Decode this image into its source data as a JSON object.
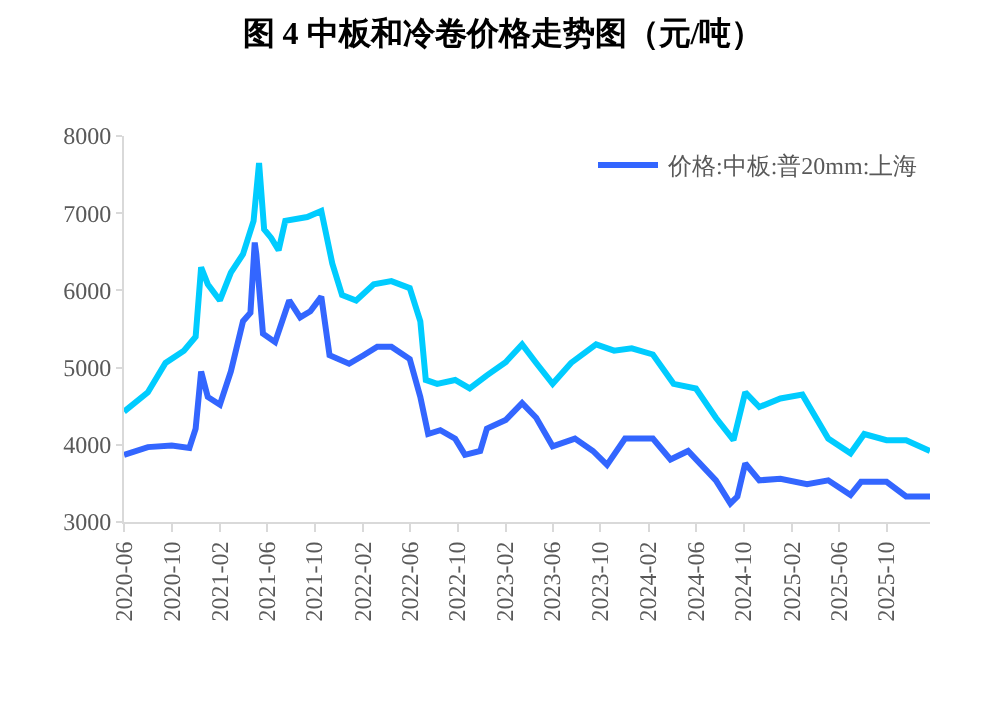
{
  "chart_data": {
    "type": "line",
    "title": "图 4 中板和冷卷价格走势图（元/吨）",
    "xlim": [
      "2020-06-01",
      "2026-01-20"
    ],
    "xticks": [
      "2020-06",
      "2020-10",
      "2021-02",
      "2021-06",
      "2021-10",
      "2022-02",
      "2022-06",
      "2022-10",
      "2023-02",
      "2023-06",
      "2023-10",
      "2024-02",
      "2024-06",
      "2024-10",
      "2025-02",
      "2025-06",
      "2025-10"
    ],
    "ylim": [
      3000,
      8000
    ],
    "yticks": [
      3000,
      4000,
      5000,
      6000,
      7000,
      8000
    ],
    "grid": false,
    "legend": "top right",
    "marker": "none",
    "line_style": "solid",
    "series": [
      {
        "name": "价格:中板:普20mm:上海",
        "color": "#3366ff",
        "x": [
          "2020-06-01",
          "2020-08-01",
          "2020-10-01",
          "2020-11-15",
          "2020-12-01",
          "2020-12-15",
          "2021-01-01",
          "2021-02-01",
          "2021-03-01",
          "2021-04-01",
          "2021-04-20",
          "2021-05-01",
          "2021-05-05",
          "2021-05-22",
          "2021-06-22",
          "2021-07-28",
          "2021-08-25",
          "2021-09-20",
          "2021-10-18",
          "2021-11-08",
          "2021-12-28",
          "2022-02-03",
          "2022-03-10",
          "2022-04-15",
          "2022-06-01",
          "2022-06-28",
          "2022-07-18",
          "2022-08-18",
          "2022-09-25",
          "2022-10-20",
          "2022-11-28",
          "2022-12-15",
          "2023-02-01",
          "2023-03-15",
          "2023-04-20",
          "2023-06-01",
          "2023-07-28",
          "2023-09-12",
          "2023-10-18",
          "2023-12-03",
          "2024-02-12",
          "2024-03-28",
          "2024-05-12",
          "2024-07-22",
          "2024-08-28",
          "2024-09-15",
          "2024-10-05",
          "2024-11-10",
          "2025-01-03",
          "2025-03-12",
          "2025-05-05",
          "2025-07-01",
          "2025-07-28",
          "2025-10-01",
          "2025-11-20",
          "2026-01-20"
        ],
        "values": [
          3870,
          3970,
          3990,
          3960,
          4210,
          4950,
          4620,
          4520,
          4950,
          5600,
          5710,
          6620,
          6470,
          5440,
          5330,
          5870,
          5650,
          5730,
          5920,
          5160,
          5050,
          5160,
          5270,
          5270,
          5110,
          4620,
          4140,
          4190,
          4080,
          3870,
          3920,
          4210,
          4320,
          4540,
          4350,
          3980,
          4080,
          3920,
          3740,
          4080,
          4080,
          3810,
          3920,
          3540,
          3240,
          3330,
          3760,
          3540,
          3560,
          3490,
          3540,
          3350,
          3520,
          3520,
          3330,
          3330
        ]
      },
      {
        "color": "#00ccff",
        "x": [
          "2020-06-01",
          "2020-08-01",
          "2020-09-15",
          "2020-11-01",
          "2020-12-01",
          "2020-12-15",
          "2021-01-01",
          "2021-02-01",
          "2021-03-01",
          "2021-04-01",
          "2021-04-28",
          "2021-05-12",
          "2021-05-25",
          "2021-06-12",
          "2021-07-01",
          "2021-07-18",
          "2021-09-12",
          "2021-10-18",
          "2021-11-15",
          "2021-12-10",
          "2022-01-15",
          "2022-03-01",
          "2022-04-15",
          "2022-06-01",
          "2022-06-28",
          "2022-07-12",
          "2022-08-10",
          "2022-09-25",
          "2022-11-01",
          "2022-12-15",
          "2023-02-01",
          "2023-03-15",
          "2023-04-20",
          "2023-06-01",
          "2023-07-18",
          "2023-09-20",
          "2023-11-05",
          "2023-12-20",
          "2024-02-12",
          "2024-04-05",
          "2024-06-01",
          "2024-07-22",
          "2024-09-05",
          "2024-10-05",
          "2024-11-10",
          "2025-01-03",
          "2025-02-28",
          "2025-05-05",
          "2025-07-01",
          "2025-08-05",
          "2025-10-01",
          "2025-11-20",
          "2026-01-20"
        ],
        "values": [
          4430,
          4680,
          5060,
          5220,
          5400,
          6300,
          6080,
          5870,
          6230,
          6470,
          6900,
          7650,
          6790,
          6680,
          6520,
          6900,
          6950,
          7030,
          6350,
          5940,
          5870,
          6080,
          6120,
          6030,
          5600,
          4840,
          4790,
          4840,
          4730,
          4900,
          5070,
          5300,
          5060,
          4790,
          5060,
          5300,
          5220,
          5250,
          5170,
          4790,
          4730,
          4350,
          4060,
          4680,
          4490,
          4600,
          4650,
          4080,
          3890,
          4140,
          4060,
          4060,
          3920
        ]
      }
    ]
  }
}
